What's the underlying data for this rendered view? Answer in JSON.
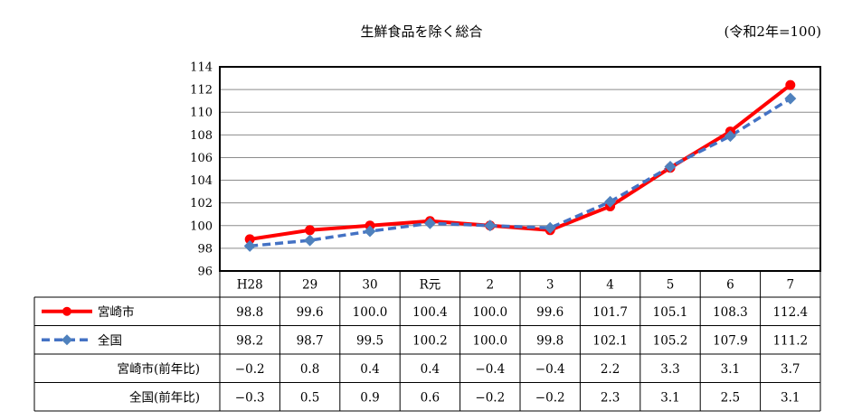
{
  "chart_data": {
    "type": "line",
    "title": "生鮮食品を除く総合",
    "subtitle": "(令和2年=100)",
    "xlabel": "",
    "ylabel": "",
    "categories": [
      "H28",
      "29",
      "30",
      "R元",
      "2",
      "3",
      "4",
      "5",
      "6",
      "7"
    ],
    "ylim": [
      96,
      114
    ],
    "yticks": [
      96,
      98,
      100,
      102,
      104,
      106,
      108,
      110,
      112,
      114
    ],
    "grid": true,
    "series": [
      {
        "name": "宮崎市",
        "color": "#ff0000",
        "marker": "circle",
        "line_style": "solid",
        "values": [
          98.8,
          99.6,
          100.0,
          100.4,
          100.0,
          99.6,
          101.7,
          105.1,
          108.3,
          112.4
        ],
        "labels": [
          "98.8",
          "99.6",
          "100.0",
          "100.4",
          "100.0",
          "99.6",
          "101.7",
          "105.1",
          "108.3",
          "112.4"
        ]
      },
      {
        "name": "全国",
        "color": "#4472c4",
        "marker": "diamond",
        "line_style": "dashed",
        "values": [
          98.2,
          98.7,
          99.5,
          100.2,
          100.0,
          99.8,
          102.1,
          105.2,
          107.9,
          111.2
        ],
        "labels": [
          "98.2",
          "98.7",
          "99.5",
          "100.2",
          "100.0",
          "99.8",
          "102.1",
          "105.2",
          "107.9",
          "111.2"
        ]
      }
    ],
    "extra_rows": [
      {
        "name": "宮崎市(前年比)",
        "values": [
          "−0.2",
          "0.8",
          "0.4",
          "0.4",
          "−0.4",
          "−0.4",
          "2.2",
          "3.3",
          "3.1",
          "3.7"
        ]
      },
      {
        "name": "全国(前年比)",
        "values": [
          "−0.3",
          "0.5",
          "0.9",
          "0.6",
          "−0.2",
          "−0.2",
          "2.3",
          "3.1",
          "2.5",
          "3.1"
        ]
      }
    ]
  }
}
